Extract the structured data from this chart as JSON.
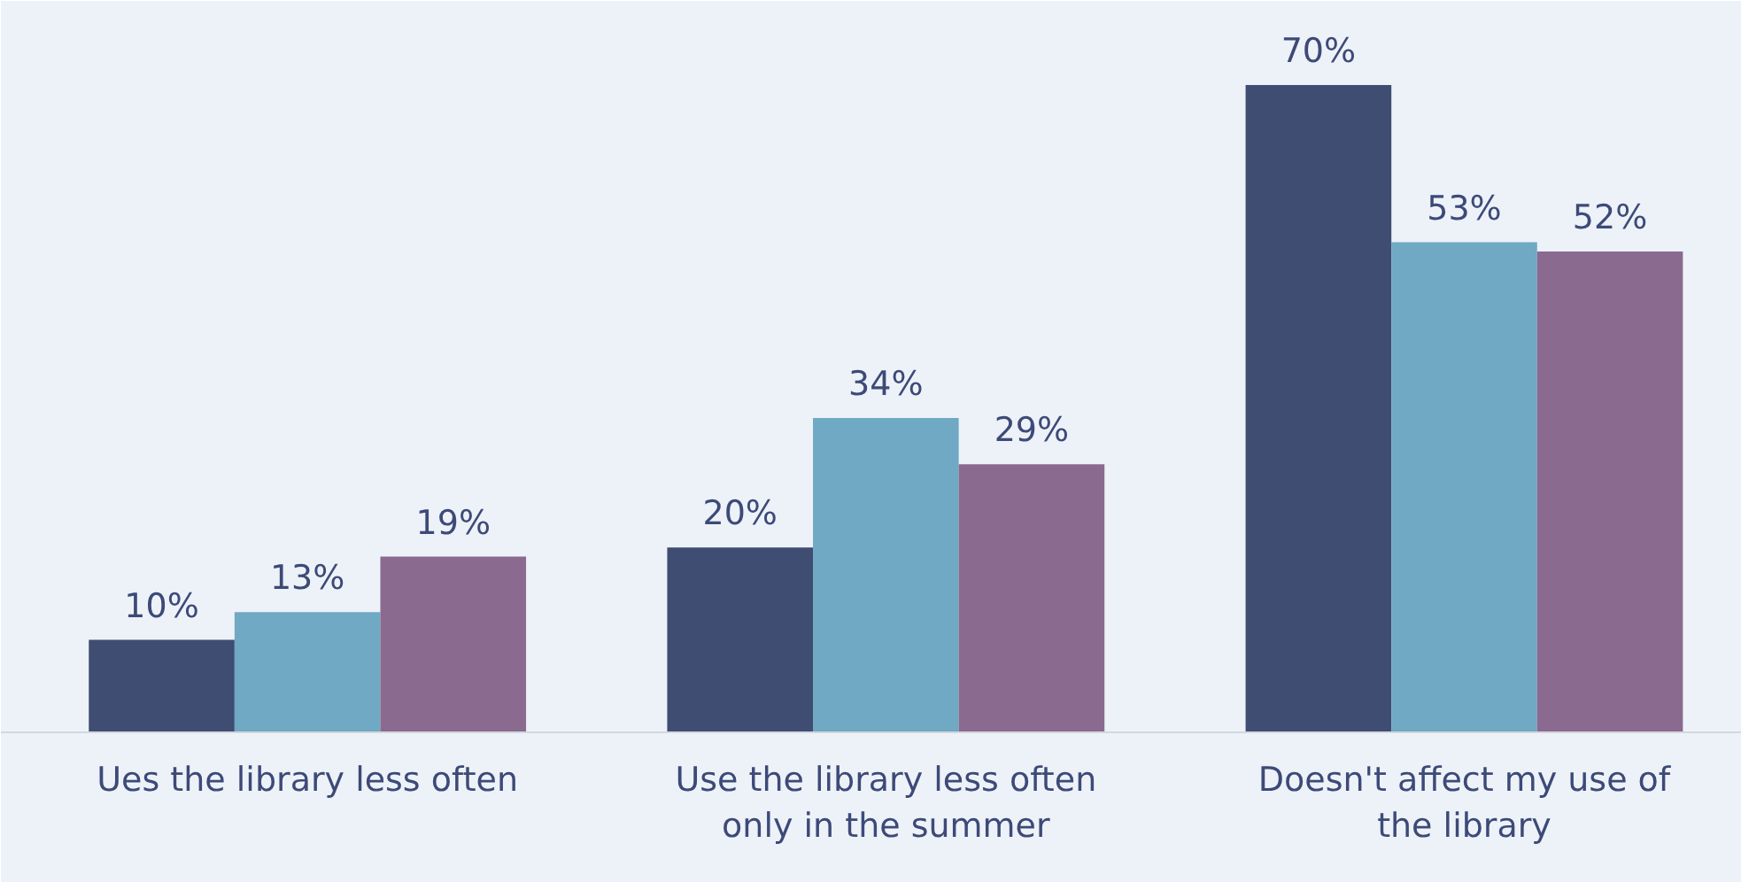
{
  "chart_data": {
    "type": "bar",
    "categories": [
      "Ues the library less often",
      "Use the library less often only in the summer",
      "Doesn't affect my use of the library"
    ],
    "series": [
      {
        "color": "#404d72",
        "values": [
          10,
          20,
          70
        ],
        "value_labels": [
          "10%",
          "20%",
          "70%"
        ]
      },
      {
        "color": "#6fa9c4",
        "values": [
          13,
          34,
          53
        ],
        "value_labels": [
          "13%",
          "34%",
          "53%"
        ]
      },
      {
        "color": "#8b6a90",
        "values": [
          19,
          29,
          52
        ],
        "value_labels": [
          "19%",
          "29%",
          "52%"
        ]
      }
    ],
    "grid": false
  }
}
